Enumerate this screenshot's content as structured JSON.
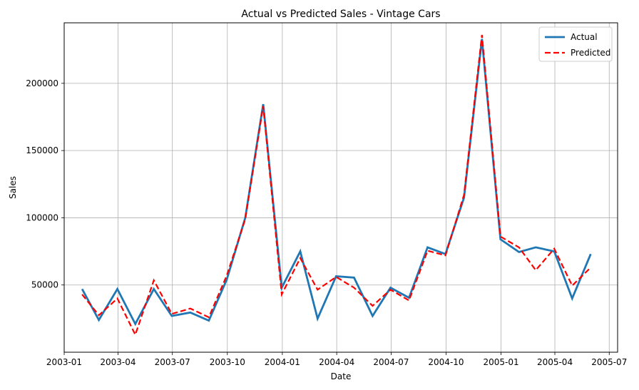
{
  "chart_data": {
    "type": "line",
    "title": "Actual vs Predicted Sales - Vintage Cars",
    "xlabel": "Date",
    "ylabel": "Sales",
    "x_range": [
      "2003-01-01",
      "2005-07-15"
    ],
    "ylim": [
      0,
      245000
    ],
    "x_ticks": [
      "2003-01",
      "2003-04",
      "2003-07",
      "2003-10",
      "2004-01",
      "2004-04",
      "2004-07",
      "2004-10",
      "2005-01",
      "2005-04",
      "2005-07"
    ],
    "y_ticks": [
      50000,
      100000,
      150000,
      200000
    ],
    "y_tick_labels": [
      "50000",
      "100000",
      "150000",
      "200000"
    ],
    "grid": true,
    "legend_position": "top-right",
    "x": [
      "2003-01-31",
      "2003-02-28",
      "2003-03-31",
      "2003-04-30",
      "2003-05-31",
      "2003-06-30",
      "2003-07-31",
      "2003-08-31",
      "2003-09-30",
      "2003-10-31",
      "2003-11-30",
      "2003-12-31",
      "2004-01-31",
      "2004-02-29",
      "2004-03-31",
      "2004-04-30",
      "2004-05-31",
      "2004-06-30",
      "2004-07-31",
      "2004-08-31",
      "2004-09-30",
      "2004-10-31",
      "2004-11-30",
      "2004-12-31",
      "2005-01-31",
      "2005-02-28",
      "2005-03-31",
      "2005-04-30",
      "2005-05-31"
    ],
    "series": [
      {
        "name": "Actual",
        "color": "#1f77b4",
        "style": "solid",
        "values": [
          47000,
          24000,
          47000,
          21000,
          47000,
          27000,
          29500,
          23500,
          54000,
          100000,
          184500,
          48000,
          75000,
          25000,
          56500,
          55500,
          27000,
          48000,
          40500,
          78000,
          73000,
          115000,
          233000,
          84000,
          74500,
          78000,
          75000,
          40000,
          73000
        ]
      },
      {
        "name": "Predicted",
        "color": "#ff0000",
        "style": "dashed",
        "values": [
          43000,
          27500,
          40000,
          13000,
          53500,
          28500,
          32500,
          26000,
          57000,
          99000,
          183000,
          43000,
          70000,
          46500,
          56000,
          48000,
          34500,
          46500,
          38500,
          75500,
          72000,
          117000,
          236000,
          86000,
          78000,
          61000,
          77000,
          49500,
          63000
        ]
      }
    ]
  }
}
